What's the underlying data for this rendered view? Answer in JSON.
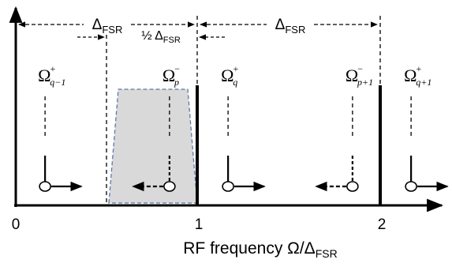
{
  "delta_fsr": "Δ",
  "fsr_sub": "FSR",
  "half_prefix": "½ Δ",
  "omega": "Ω",
  "axis": {
    "label_main": "RF frequency Ω/Δ",
    "label_sub": "FSR",
    "ticks": [
      {
        "value": 0,
        "label": "0"
      },
      {
        "value": 1,
        "label": "1"
      },
      {
        "value": 2,
        "label": "2"
      }
    ]
  },
  "modes": [
    {
      "pos": 0.16,
      "sup": "+",
      "sub": "q−1",
      "arrow": "right",
      "dashed": false
    },
    {
      "pos": 0.84,
      "sup": "−",
      "sub": "p",
      "arrow": "left",
      "dashed": true
    },
    {
      "pos": 1.16,
      "sup": "+",
      "sub": "q",
      "arrow": "right",
      "dashed": false
    },
    {
      "pos": 1.84,
      "sup": "−",
      "sub": "p+1",
      "arrow": "left",
      "dashed": true
    },
    {
      "pos": 2.16,
      "sup": "+",
      "sub": "q+1",
      "arrow": "right",
      "dashed": false
    }
  ],
  "filter": {
    "from": 0.5,
    "to": 1.0,
    "color": "#d9d9d9",
    "edge_color": "#5b78a8"
  },
  "colors": {
    "ink": "#000000",
    "background": "#ffffff"
  }
}
